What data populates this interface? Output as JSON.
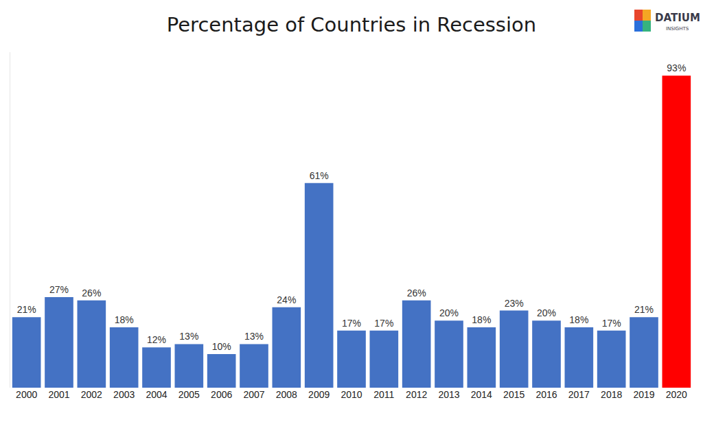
{
  "chart_data": {
    "type": "bar",
    "title": "Percentage of Countries in Recession",
    "categories": [
      "2000",
      "2001",
      "2002",
      "2003",
      "2004",
      "2005",
      "2006",
      "2007",
      "2008",
      "2009",
      "2010",
      "2011",
      "2012",
      "2013",
      "2014",
      "2015",
      "2016",
      "2017",
      "2018",
      "2019",
      "2020"
    ],
    "values": [
      21,
      27,
      26,
      18,
      12,
      13,
      10,
      13,
      24,
      61,
      17,
      17,
      26,
      20,
      18,
      23,
      20,
      18,
      17,
      21,
      93
    ],
    "value_labels": [
      "21%",
      "27%",
      "26%",
      "18%",
      "12%",
      "13%",
      "10%",
      "13%",
      "24%",
      "61%",
      "17%",
      "17%",
      "26%",
      "20%",
      "18%",
      "23%",
      "20%",
      "18%",
      "17%",
      "21%",
      "93%"
    ],
    "colors": [
      "#4472c4",
      "#4472c4",
      "#4472c4",
      "#4472c4",
      "#4472c4",
      "#4472c4",
      "#4472c4",
      "#4472c4",
      "#4472c4",
      "#4472c4",
      "#4472c4",
      "#4472c4",
      "#4472c4",
      "#4472c4",
      "#4472c4",
      "#4472c4",
      "#4472c4",
      "#4472c4",
      "#4472c4",
      "#4472c4",
      "#ff0000"
    ],
    "ylim": [
      0,
      100
    ],
    "grid": false,
    "data_labels": true,
    "tick_labels": "x",
    "annotations": [
      "DATIUM",
      "INSIGHTS"
    ]
  }
}
